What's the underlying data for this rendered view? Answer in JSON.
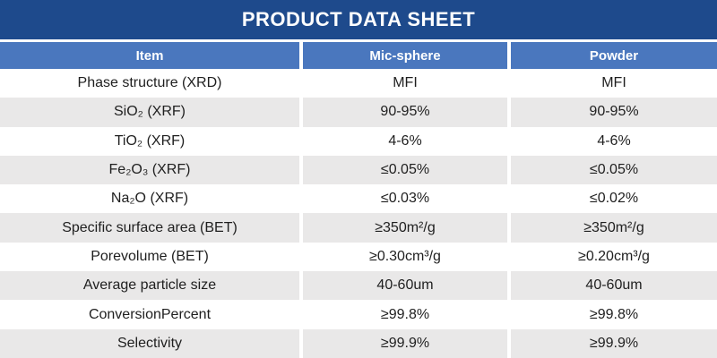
{
  "title": "PRODUCT DATA SHEET",
  "colors": {
    "title_bar_bg": "#1E4A8C",
    "header_row_bg": "#4A77BE",
    "alt_row_bg": "#E9E8E8",
    "header_text": "#FFFFFF",
    "body_text": "#1F1F1F",
    "divider": "#FFFFFF"
  },
  "table": {
    "columns": [
      {
        "label": "Item"
      },
      {
        "label": "Mic-sphere"
      },
      {
        "label": "Powder"
      }
    ],
    "rows": [
      {
        "item": "Phase structure (XRD)",
        "mic": "MFI",
        "powder": "MFI"
      },
      {
        "item": "SiO₂ (XRF)",
        "mic": "90-95%",
        "powder": "90-95%"
      },
      {
        "item": "TiO₂ (XRF)",
        "mic": "4-6%",
        "powder": "4-6%"
      },
      {
        "item": "Fe₂O₃ (XRF)",
        "mic": "≤0.05%",
        "powder": "≤0.05%"
      },
      {
        "item": "Na₂O (XRF)",
        "mic": "≤0.03%",
        "powder": "≤0.02%"
      },
      {
        "item": "Specific surface area (BET)",
        "mic": "≥350m²/g",
        "powder": "≥350m²/g"
      },
      {
        "item": "Porevolume (BET)",
        "mic": "≥0.30cm³/g",
        "powder": "≥0.20cm³/g"
      },
      {
        "item": "Average particle size",
        "mic": "40-60um",
        "powder": "40-60um"
      },
      {
        "item": "ConversionPercent",
        "mic": "≥99.8%",
        "powder": "≥99.8%"
      },
      {
        "item": "Selectivity",
        "mic": "≥99.9%",
        "powder": "≥99.9%"
      }
    ]
  }
}
